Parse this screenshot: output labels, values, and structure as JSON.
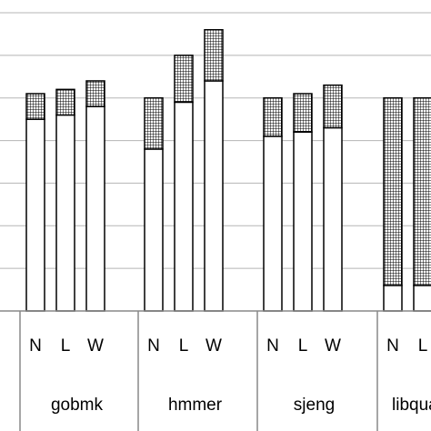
{
  "chart_data": {
    "type": "bar",
    "stacked": true,
    "ylim": [
      0,
      7
    ],
    "grid": true,
    "groups": [
      {
        "name": "gobmk",
        "bars": [
          {
            "label": "N",
            "base": 4.5,
            "top": 0.6
          },
          {
            "label": "L",
            "base": 4.6,
            "top": 0.6
          },
          {
            "label": "W",
            "base": 4.8,
            "top": 0.6
          }
        ]
      },
      {
        "name": "hmmer",
        "bars": [
          {
            "label": "N",
            "base": 3.8,
            "top": 1.2
          },
          {
            "label": "L",
            "base": 4.9,
            "top": 1.1
          },
          {
            "label": "W",
            "base": 5.4,
            "top": 1.2
          }
        ]
      },
      {
        "name": "sjeng",
        "bars": [
          {
            "label": "N",
            "base": 4.1,
            "top": 0.9
          },
          {
            "label": "L",
            "base": 4.2,
            "top": 0.9
          },
          {
            "label": "W",
            "base": 4.3,
            "top": 1.0
          }
        ]
      },
      {
        "name": "libquantum",
        "bars": [
          {
            "label": "N",
            "base": 0.6,
            "top": 4.4
          },
          {
            "label": "L",
            "base": 0.6,
            "top": 4.4
          }
        ]
      }
    ],
    "bar_colors": {
      "base": "#ffffff",
      "top_pattern": "grid",
      "outline": "#000000"
    }
  }
}
